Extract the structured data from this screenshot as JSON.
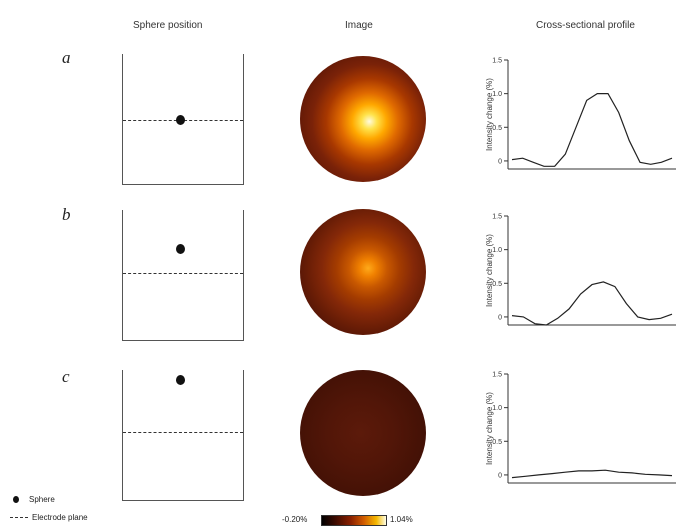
{
  "headers": {
    "position": "Sphere position",
    "image": "Image",
    "profile": "Cross-sectional profile"
  },
  "rows": [
    {
      "label": "a",
      "profile": [
        0.02,
        0.04,
        -0.02,
        -0.08,
        -0.08,
        0.1,
        0.5,
        0.9,
        1.0,
        1.0,
        0.72,
        0.3,
        -0.02,
        -0.05,
        -0.02,
        0.04
      ]
    },
    {
      "label": "b",
      "profile": [
        0.02,
        0.0,
        -0.1,
        -0.12,
        -0.02,
        0.12,
        0.34,
        0.48,
        0.52,
        0.45,
        0.2,
        0.0,
        -0.04,
        -0.02,
        0.04
      ]
    },
    {
      "label": "c",
      "profile": [
        -0.04,
        -0.02,
        0.0,
        0.02,
        0.04,
        0.06,
        0.06,
        0.07,
        0.04,
        0.03,
        0.01,
        0.0,
        -0.01
      ]
    }
  ],
  "axis": {
    "ylabel": "Intensity change (%)",
    "yticks": [
      "0",
      "0.5",
      "1.0",
      "1.5"
    ]
  },
  "legend": {
    "sphere": "Sphere",
    "electrode_plane": "Electrode plane"
  },
  "colorbar": {
    "min": "-0.20%",
    "max": "1.04%"
  }
}
